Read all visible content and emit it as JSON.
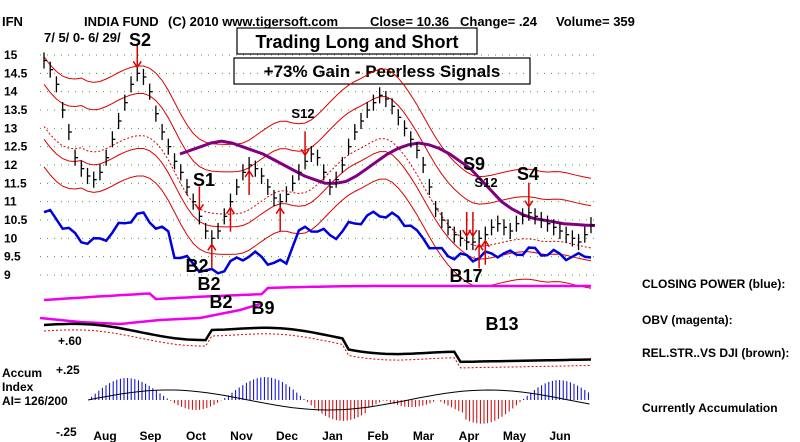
{
  "header": {
    "symbol": "IFN",
    "name": "INDIA FUND",
    "copyright": "(C) 2010 www.tigersoft.com",
    "close": "Close= 10.36",
    "change": "Change= .24",
    "volume": "Volume= 359",
    "date_range": "7/ 5/ 0- 6/ 29/"
  },
  "title_boxes": [
    "Trading Long and Short",
    "+73% Gain - Peerless Signals"
  ],
  "legend": {
    "closing_power": "CLOSING POWER (blue):",
    "obv": "OBV (magenta):",
    "rel_str": "REL.STR..VS DJI (brown):",
    "accum_status": "Currently Accumulation"
  },
  "accum_labels": {
    "name1": "Accum",
    "name2": "Index",
    "ai": "AI= 126/200",
    "top": "+.25",
    "bottom": "-.25",
    "obv_ref": "+.60"
  },
  "colors": {
    "price": "#000000",
    "bands": "#dd0000",
    "ma": "#800080",
    "closing_power": "#0000dd",
    "obv": "#ee00ee",
    "rel_str": "#000000",
    "signal": "#dd0000"
  },
  "chart_data": {
    "type": "line",
    "y_ticks": [
      "15",
      "14.5",
      "14",
      "13.5",
      "13",
      "12.5",
      "12",
      "11.5",
      "11",
      "10.5",
      "10",
      "9.5",
      "9"
    ],
    "x_ticks": [
      "Aug",
      "Sep",
      "Oct",
      "Nov",
      "Dec",
      "Jan",
      "Feb",
      "Mar",
      "Apr",
      "May",
      "Jun"
    ],
    "ylim": [
      9,
      15
    ],
    "series": [
      {
        "values": [
          14.85,
          14.6,
          14.2,
          13.5,
          12.9,
          12.2,
          11.9,
          11.7,
          11.6,
          11.8,
          12.2,
          12.7,
          13.2,
          13.7,
          14.2,
          14.5,
          14.4,
          14.0,
          13.4,
          12.9,
          12.5,
          12.1,
          11.8,
          11.4,
          11.0,
          10.6,
          10.2,
          10.0,
          10.2,
          10.6,
          11.0,
          11.4,
          11.8,
          12.0,
          11.9,
          11.7,
          11.4,
          11.1,
          11.0,
          11.2,
          11.5,
          11.8,
          12.1,
          12.3,
          12.2,
          11.8,
          11.4,
          11.6,
          12.0,
          12.5,
          12.9,
          13.2,
          13.5,
          13.7,
          13.9,
          13.8,
          13.6,
          13.3,
          13.0,
          12.7,
          12.4,
          12.0,
          11.4,
          10.8,
          10.5,
          10.3,
          10.1,
          10.0,
          9.9,
          9.9,
          10.0,
          10.1,
          10.3,
          10.4,
          10.3,
          10.2,
          10.4,
          10.6,
          10.7,
          10.6,
          10.5,
          10.4,
          10.3,
          10.2,
          10.1,
          10.0,
          9.9,
          10.1,
          10.36
        ]
      },
      {
        "values": [
          12.3,
          12.4,
          12.5,
          12.6,
          12.65,
          12.6,
          12.5,
          12.4,
          12.3,
          12.15,
          12.0,
          11.85,
          11.7,
          11.6,
          11.5,
          11.5,
          11.55,
          11.7,
          11.9,
          12.1,
          12.3,
          12.45,
          12.55,
          12.6,
          12.55,
          12.45,
          12.3,
          12.1,
          11.9,
          11.6,
          11.3,
          11.0,
          10.8,
          10.65,
          10.55,
          10.5,
          10.45,
          10.4,
          10.38,
          10.36,
          10.35
        ]
      }
    ],
    "signals": [
      {
        "label": "S2",
        "type": "sell",
        "index": 15,
        "value": 14.5
      },
      {
        "label": "S1",
        "type": "sell",
        "index": 25,
        "value": 10.6
      },
      {
        "label": "B2",
        "type": "buy",
        "index": 27,
        "value": 10.0
      },
      {
        "label": "B2",
        "type": "buy",
        "index": 30,
        "value": 11.0
      },
      {
        "label": "B2",
        "type": "buy",
        "index": 33,
        "value": 12.0
      },
      {
        "label": "B9",
        "type": "buy",
        "index": 38,
        "value": 11.0
      },
      {
        "label": "S12",
        "type": "sell",
        "index": 42,
        "value": 12.1
      },
      {
        "label": "S9",
        "type": "sell",
        "index": 68,
        "value": 9.9
      },
      {
        "label": "S12",
        "type": "sell",
        "index": 69,
        "value": 9.9
      },
      {
        "label": "B17",
        "type": "buy",
        "index": 70,
        "value": 10.0
      },
      {
        "label": "B13",
        "type": "buy",
        "index": 71,
        "value": 10.1
      },
      {
        "label": "S4",
        "type": "sell",
        "index": 78,
        "value": 10.7
      }
    ]
  }
}
